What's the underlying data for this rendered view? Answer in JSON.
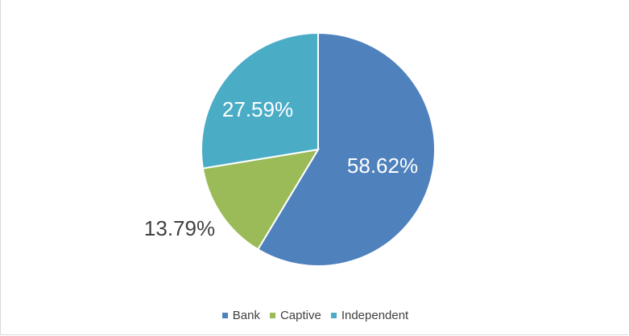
{
  "chart_data": {
    "type": "pie",
    "categories": [
      "Bank",
      "Captive",
      "Independent"
    ],
    "values": [
      58.62,
      13.79,
      27.59
    ],
    "data_labels": [
      "58.62%",
      "13.79%",
      "27.59%"
    ],
    "colors": [
      "#4f81bd",
      "#9bbb59",
      "#4bacc6"
    ],
    "legend_position": "bottom",
    "title": ""
  }
}
